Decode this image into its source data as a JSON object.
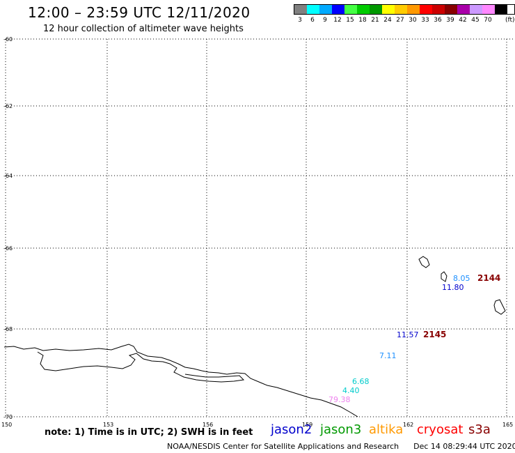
{
  "header": {
    "title": "12:00 – 23:59 UTC 12/11/2020",
    "subtitle": "12 hour collection of altimeter wave heights"
  },
  "legend": {
    "unit": "(ft)",
    "items": [
      {
        "label": "3",
        "color": "#808080"
      },
      {
        "label": "6",
        "color": "#00ffff"
      },
      {
        "label": "9",
        "color": "#00aaff"
      },
      {
        "label": "12",
        "color": "#0000ff"
      },
      {
        "label": "15",
        "color": "#44ff44"
      },
      {
        "label": "18",
        "color": "#00cc00"
      },
      {
        "label": "21",
        "color": "#009900"
      },
      {
        "label": "24",
        "color": "#ffff00"
      },
      {
        "label": "27",
        "color": "#ffcc00"
      },
      {
        "label": "30",
        "color": "#ff9900"
      },
      {
        "label": "33",
        "color": "#ff0000"
      },
      {
        "label": "36",
        "color": "#cc0000"
      },
      {
        "label": "39",
        "color": "#880000"
      },
      {
        "label": "42",
        "color": "#aa00aa"
      },
      {
        "label": "45",
        "color": "#cc99ff"
      },
      {
        "label": "70",
        "color": "#ff88ff"
      },
      {
        "label": "",
        "color": "#000000"
      }
    ]
  },
  "axes": {
    "lat_labels": [
      "-60",
      "-62",
      "-64",
      "-66",
      "-68",
      "-70"
    ],
    "lon_labels": [
      "150",
      "153",
      "156",
      "159",
      "162",
      "165"
    ]
  },
  "observations": [
    {
      "text": "8.05",
      "color": "#1e90ff"
    },
    {
      "text": "11.80",
      "color": "#0000cc"
    },
    {
      "text": "11.57",
      "color": "#0000cc"
    },
    {
      "text": "7.11",
      "color": "#1e90ff"
    },
    {
      "text": "6.68",
      "color": "#00cccc"
    },
    {
      "text": "4.40",
      "color": "#00cccc"
    },
    {
      "text": "79.38",
      "color": "#ee82ee"
    }
  ],
  "time_tags": [
    {
      "text": "2144",
      "color": "#880000"
    },
    {
      "text": "2145",
      "color": "#880000"
    }
  ],
  "note": "note: 1) Time is in UTC; 2) SWH is in feet",
  "satellites": [
    {
      "name": "jason2",
      "color": "#0000cc"
    },
    {
      "name": "jason3",
      "color": "#009900"
    },
    {
      "name": "altika",
      "color": "#ff9900"
    },
    {
      "name": "cryosat",
      "color": "#ff0000"
    },
    {
      "name": "s3a",
      "color": "#880000"
    }
  ],
  "footer": {
    "agency": "NOAA/NESDIS Center for Satellite Applications and Research",
    "timestamp": "Dec 14 08:29:44 UTC 2020"
  }
}
